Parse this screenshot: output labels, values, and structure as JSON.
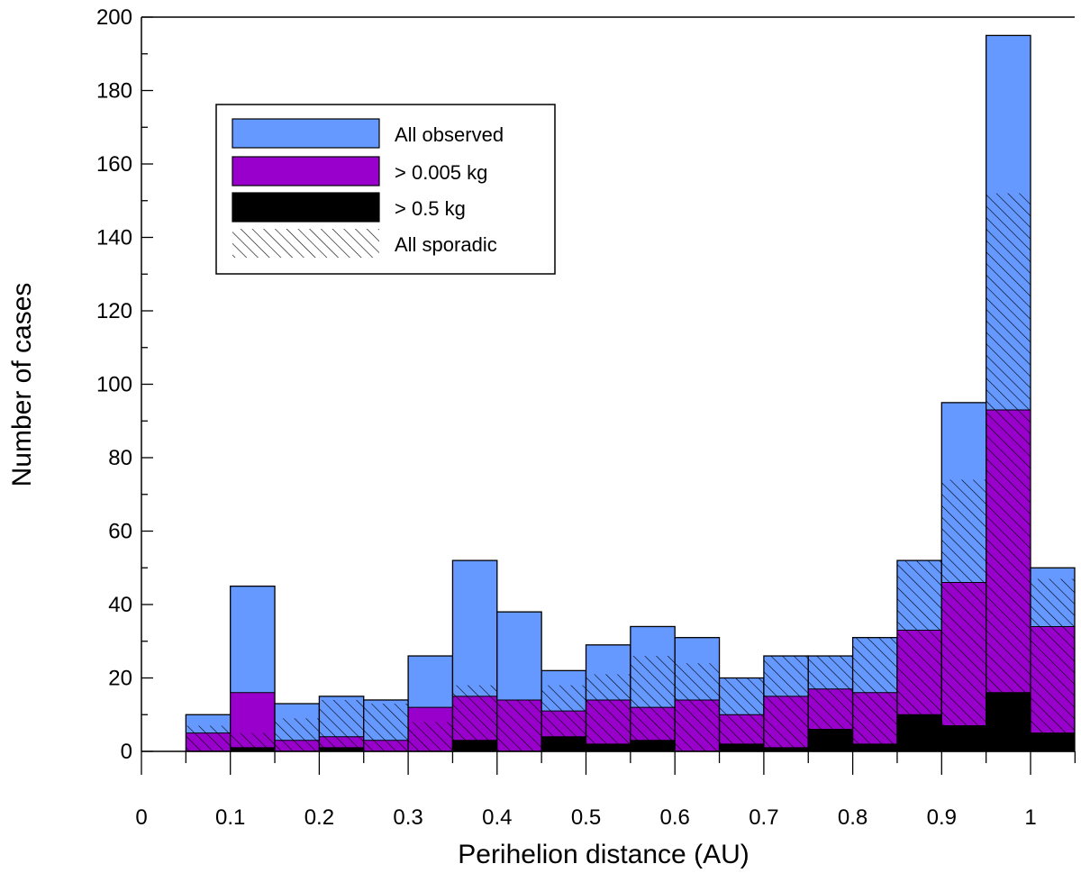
{
  "chart_data": {
    "type": "bar",
    "title": "",
    "xlabel": "Perihelion distance (AU)",
    "ylabel": "Number of cases",
    "xlim": [
      0,
      1.05
    ],
    "ylim": [
      0,
      200
    ],
    "grid": false,
    "legend_position": "top-left",
    "bin_width": 0.05,
    "bin_starts": [
      0.05,
      0.1,
      0.15,
      0.2,
      0.25,
      0.3,
      0.35,
      0.4,
      0.45,
      0.5,
      0.55,
      0.6,
      0.65,
      0.7,
      0.75,
      0.8,
      0.85,
      0.9,
      0.95,
      1.0
    ],
    "x_tick_labels": [
      "0",
      "0.1",
      "0.2",
      "0.3",
      "0.4",
      "0.5",
      "0.6",
      "0.7",
      "0.8",
      "0.9",
      "1"
    ],
    "y_tick_labels": [
      "0",
      "20",
      "40",
      "60",
      "80",
      "100",
      "120",
      "140",
      "160",
      "180",
      "200"
    ],
    "series": [
      {
        "name": "All observed",
        "color": "#6699ff",
        "values": [
          10,
          45,
          13,
          15,
          14,
          26,
          52,
          38,
          22,
          29,
          34,
          31,
          20,
          26,
          26,
          31,
          52,
          95,
          195,
          50
        ]
      },
      {
        "name": "> 0.005 kg",
        "color": "#9900cc",
        "values": [
          5,
          16,
          3,
          4,
          3,
          12,
          15,
          14,
          11,
          14,
          12,
          14,
          10,
          15,
          17,
          16,
          33,
          46,
          93,
          34
        ]
      },
      {
        "name": "> 0.5 kg",
        "color": "#000000",
        "values": [
          0,
          1,
          0,
          1,
          0,
          0,
          3,
          0,
          4,
          2,
          3,
          0,
          2,
          1,
          6,
          2,
          10,
          7,
          16,
          5
        ]
      },
      {
        "name": "All sporadic",
        "pattern": "hatch",
        "values": [
          7,
          5,
          9,
          14,
          13,
          8,
          18,
          14,
          18,
          21,
          26,
          24,
          20,
          26,
          26,
          31,
          52,
          74,
          152,
          47
        ]
      }
    ]
  }
}
